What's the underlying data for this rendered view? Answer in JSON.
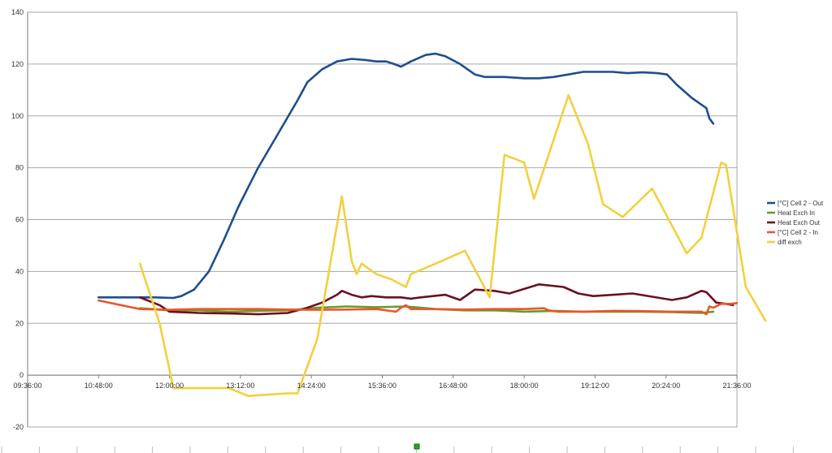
{
  "chart_data": {
    "type": "line",
    "xlim": [
      "09:36:00",
      "21:36:00"
    ],
    "ylim": [
      -20,
      140
    ],
    "grid": true,
    "legend_position": "right",
    "y_ticks": [
      -20,
      0,
      20,
      40,
      60,
      80,
      100,
      120,
      140
    ],
    "x_ticks": [
      "09:36:00",
      "10:48:00",
      "12:00:00",
      "13:12:00",
      "14:24:00",
      "15:36:00",
      "16:48:00",
      "18:00:00",
      "19:12:00",
      "20:24:00",
      "21:36:00"
    ],
    "series": [
      {
        "name": "[°C] Cell 2 - Out",
        "color": "#1f4e8c",
        "points": [
          [
            "10:48:00",
            30
          ],
          [
            "11:30:00",
            30
          ],
          [
            "11:45:00",
            30
          ],
          [
            "12:04:00",
            29.8
          ],
          [
            "12:12:00",
            30.5
          ],
          [
            "12:25:00",
            33
          ],
          [
            "12:40:00",
            40
          ],
          [
            "12:55:00",
            52
          ],
          [
            "13:10:00",
            65
          ],
          [
            "13:30:00",
            80
          ],
          [
            "13:50:00",
            93
          ],
          [
            "14:10:00",
            106
          ],
          [
            "14:20:00",
            113
          ],
          [
            "14:35:00",
            118
          ],
          [
            "14:50:00",
            121
          ],
          [
            "15:05:00",
            122
          ],
          [
            "15:20:00",
            121.5
          ],
          [
            "15:30:00",
            121
          ],
          [
            "15:40:00",
            121
          ],
          [
            "15:48:00",
            120
          ],
          [
            "15:55:00",
            119
          ],
          [
            "16:05:00",
            121
          ],
          [
            "16:20:00",
            123.5
          ],
          [
            "16:30:00",
            124
          ],
          [
            "16:40:00",
            123
          ],
          [
            "16:55:00",
            120
          ],
          [
            "17:10:00",
            116
          ],
          [
            "17:20:00",
            115
          ],
          [
            "17:40:00",
            115
          ],
          [
            "18:00:00",
            114.5
          ],
          [
            "18:15:00",
            114.5
          ],
          [
            "18:30:00",
            115
          ],
          [
            "18:45:00",
            116
          ],
          [
            "19:00:00",
            117
          ],
          [
            "19:15:00",
            117
          ],
          [
            "19:30:00",
            117
          ],
          [
            "19:45:00",
            116.5
          ],
          [
            "20:00:00",
            116.8
          ],
          [
            "20:15:00",
            116.5
          ],
          [
            "20:25:00",
            116
          ],
          [
            "20:35:00",
            112
          ],
          [
            "20:50:00",
            107
          ],
          [
            "21:05:00",
            103
          ],
          [
            "21:08:00",
            99
          ],
          [
            "21:12:00",
            97
          ]
        ]
      },
      {
        "name": "Heat Exch In",
        "color": "#6a9a2a",
        "points": [
          [
            "11:30:00",
            25.8
          ],
          [
            "12:00:00",
            25
          ],
          [
            "12:30:00",
            25
          ],
          [
            "13:00:00",
            24.5
          ],
          [
            "13:30:00",
            24.8
          ],
          [
            "14:00:00",
            25
          ],
          [
            "14:30:00",
            26
          ],
          [
            "15:00:00",
            26.5
          ],
          [
            "15:30:00",
            26.2
          ],
          [
            "16:00:00",
            26.5
          ],
          [
            "16:30:00",
            25.5
          ],
          [
            "17:00:00",
            25
          ],
          [
            "17:30:00",
            25
          ],
          [
            "18:00:00",
            24.5
          ],
          [
            "18:30:00",
            24.8
          ],
          [
            "19:00:00",
            24.5
          ],
          [
            "19:30:00",
            24.5
          ],
          [
            "20:00:00",
            24.5
          ],
          [
            "20:30:00",
            24.3
          ],
          [
            "21:00:00",
            24
          ],
          [
            "21:12:00",
            24.5
          ]
        ]
      },
      {
        "name": "Heat Exch Out",
        "color": "#6b1020",
        "points": [
          [
            "11:30:00",
            30
          ],
          [
            "11:50:00",
            27
          ],
          [
            "12:00:00",
            24.5
          ],
          [
            "12:30:00",
            24
          ],
          [
            "13:00:00",
            23.8
          ],
          [
            "13:30:00",
            23.5
          ],
          [
            "14:00:00",
            24
          ],
          [
            "14:20:00",
            26
          ],
          [
            "14:35:00",
            28
          ],
          [
            "14:50:00",
            31
          ],
          [
            "14:55:00",
            32.5
          ],
          [
            "15:05:00",
            31
          ],
          [
            "15:15:00",
            30
          ],
          [
            "15:25:00",
            30.5
          ],
          [
            "15:40:00",
            30
          ],
          [
            "15:55:00",
            30
          ],
          [
            "16:05:00",
            29.5
          ],
          [
            "16:15:00",
            30
          ],
          [
            "16:40:00",
            31
          ],
          [
            "16:55:00",
            29
          ],
          [
            "17:10:00",
            33
          ],
          [
            "17:30:00",
            32.5
          ],
          [
            "17:45:00",
            31.5
          ],
          [
            "18:15:00",
            35
          ],
          [
            "18:40:00",
            34
          ],
          [
            "18:55:00",
            31.5
          ],
          [
            "19:10:00",
            30.5
          ],
          [
            "19:50:00",
            31.5
          ],
          [
            "20:30:00",
            29
          ],
          [
            "20:45:00",
            30
          ],
          [
            "21:00:00",
            32.5
          ],
          [
            "21:05:00",
            32
          ],
          [
            "21:15:00",
            28
          ],
          [
            "21:25:00",
            27.5
          ],
          [
            "21:32:00",
            27
          ]
        ]
      },
      {
        "name": "[°C] Cell 2 - In",
        "color": "#e8582a",
        "points": [
          [
            "10:48:00",
            28.8
          ],
          [
            "11:30:00",
            25.5
          ],
          [
            "12:00:00",
            25.2
          ],
          [
            "12:30:00",
            25.5
          ],
          [
            "13:00:00",
            25.5
          ],
          [
            "13:30:00",
            25.5
          ],
          [
            "14:00:00",
            25.3
          ],
          [
            "14:30:00",
            25.2
          ],
          [
            "15:00:00",
            25.3
          ],
          [
            "15:30:00",
            25.5
          ],
          [
            "15:50:00",
            24.5
          ],
          [
            "15:55:00",
            26
          ],
          [
            "16:00:00",
            27
          ],
          [
            "16:05:00",
            25.5
          ],
          [
            "16:30:00",
            25.5
          ],
          [
            "17:00:00",
            25.3
          ],
          [
            "17:30:00",
            25.5
          ],
          [
            "18:00:00",
            25.5
          ],
          [
            "18:20:00",
            25.8
          ],
          [
            "18:25:00",
            25
          ],
          [
            "18:35:00",
            24.5
          ],
          [
            "19:00:00",
            24.5
          ],
          [
            "19:30:00",
            24.8
          ],
          [
            "20:00:00",
            24.7
          ],
          [
            "20:30:00",
            24.5
          ],
          [
            "21:00:00",
            24.5
          ],
          [
            "21:05:00",
            23.5
          ],
          [
            "21:08:00",
            26.5
          ],
          [
            "21:12:00",
            26
          ],
          [
            "21:20:00",
            27.5
          ],
          [
            "21:30:00",
            27.5
          ],
          [
            "21:36:00",
            27.8
          ]
        ]
      },
      {
        "name": "diff exch",
        "color": "#f2d03e",
        "points": [
          [
            "11:30:00",
            43
          ],
          [
            "11:50:00",
            20
          ],
          [
            "12:04:00",
            -5
          ],
          [
            "12:30:00",
            -5
          ],
          [
            "13:00:00",
            -5
          ],
          [
            "13:20:00",
            -8
          ],
          [
            "13:40:00",
            -7.5
          ],
          [
            "14:00:00",
            -7
          ],
          [
            "14:10:00",
            -7
          ],
          [
            "14:30:00",
            14
          ],
          [
            "14:55:00",
            69
          ],
          [
            "15:05:00",
            44
          ],
          [
            "15:10:00",
            39
          ],
          [
            "15:15:00",
            43
          ],
          [
            "15:30:00",
            39
          ],
          [
            "15:45:00",
            37
          ],
          [
            "16:00:00",
            34
          ],
          [
            "16:05:00",
            39
          ],
          [
            "16:30:00",
            43
          ],
          [
            "17:00:00",
            48
          ],
          [
            "17:25:00",
            30
          ],
          [
            "17:40:00",
            85
          ],
          [
            "18:00:00",
            82
          ],
          [
            "18:10:00",
            68
          ],
          [
            "18:45:00",
            108
          ],
          [
            "19:05:00",
            89
          ],
          [
            "19:20:00",
            66
          ],
          [
            "19:40:00",
            61
          ],
          [
            "20:10:00",
            72
          ],
          [
            "20:45:00",
            47
          ],
          [
            "21:00:00",
            53
          ],
          [
            "21:20:00",
            82
          ],
          [
            "21:25:00",
            81
          ],
          [
            "21:45:00",
            34
          ],
          [
            "22:05:00",
            21
          ]
        ]
      }
    ]
  }
}
